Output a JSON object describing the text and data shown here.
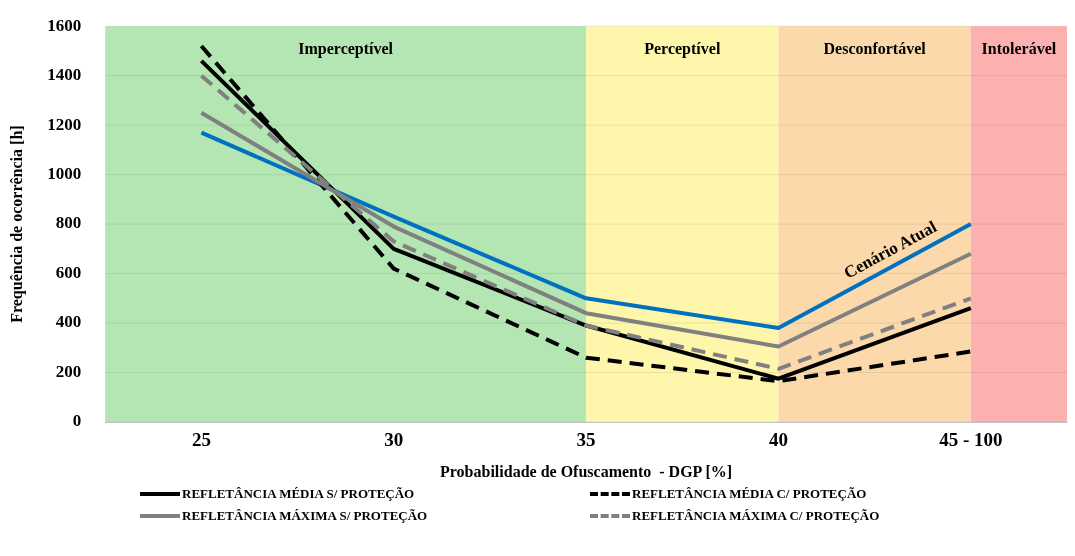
{
  "chart_data": {
    "type": "line",
    "xlabel": "Probabilidade de Ofuscamento  - DGP [%]",
    "ylabel": "Frequência de ocorrência [h]",
    "categories": [
      "25",
      "30",
      "35",
      "40",
      "45 - 100"
    ],
    "ylim": [
      0,
      1600
    ],
    "yticks": [
      0,
      200,
      400,
      600,
      800,
      1000,
      1200,
      1400,
      1600
    ],
    "grid": "y",
    "legend": "bottom",
    "marker": "none",
    "series": [
      {
        "name": "Cenário Atual",
        "color": "#0070c0",
        "line_style": "solid",
        "values": [
          1170,
          830,
          500,
          380,
          800
        ]
      },
      {
        "name": "REFLETÂNCIA MÉDIA S/ PROTEÇÃO",
        "color": "#000000",
        "line_style": "solid",
        "values": [
          1460,
          700,
          390,
          175,
          460
        ]
      },
      {
        "name": "REFLETÂNCIA MÉDIA C/ PROTEÇÃO",
        "color": "#000000",
        "line_style": "dashed",
        "values": [
          1520,
          620,
          260,
          165,
          285
        ]
      },
      {
        "name": "REFLETÂNCIA MÁXIMA S/ PROTEÇÃO",
        "color": "#808080",
        "line_style": "solid",
        "values": [
          1250,
          790,
          440,
          305,
          680
        ]
      },
      {
        "name": "REFLETÂNCIA MÁXIMA C/ PROTEÇÃO",
        "color": "#808080",
        "line_style": "dashed",
        "values": [
          1400,
          730,
          390,
          215,
          500
        ]
      }
    ],
    "bands": [
      {
        "axis": "x",
        "from": "25",
        "to": "35",
        "label": "Imperceptível",
        "color": "#b3e6b3"
      },
      {
        "axis": "x",
        "from": "35",
        "to": "40",
        "label": "Perceptível",
        "color": "#fdf6ab"
      },
      {
        "axis": "x",
        "from": "40",
        "to": "45 - 100",
        "label": "Desconfortável",
        "color": "#fbd9aa"
      },
      {
        "axis": "x",
        "from": "45 - 100",
        "to": "45 - 100",
        "label": "Intolerável",
        "color": "#fcb0b0"
      }
    ]
  }
}
